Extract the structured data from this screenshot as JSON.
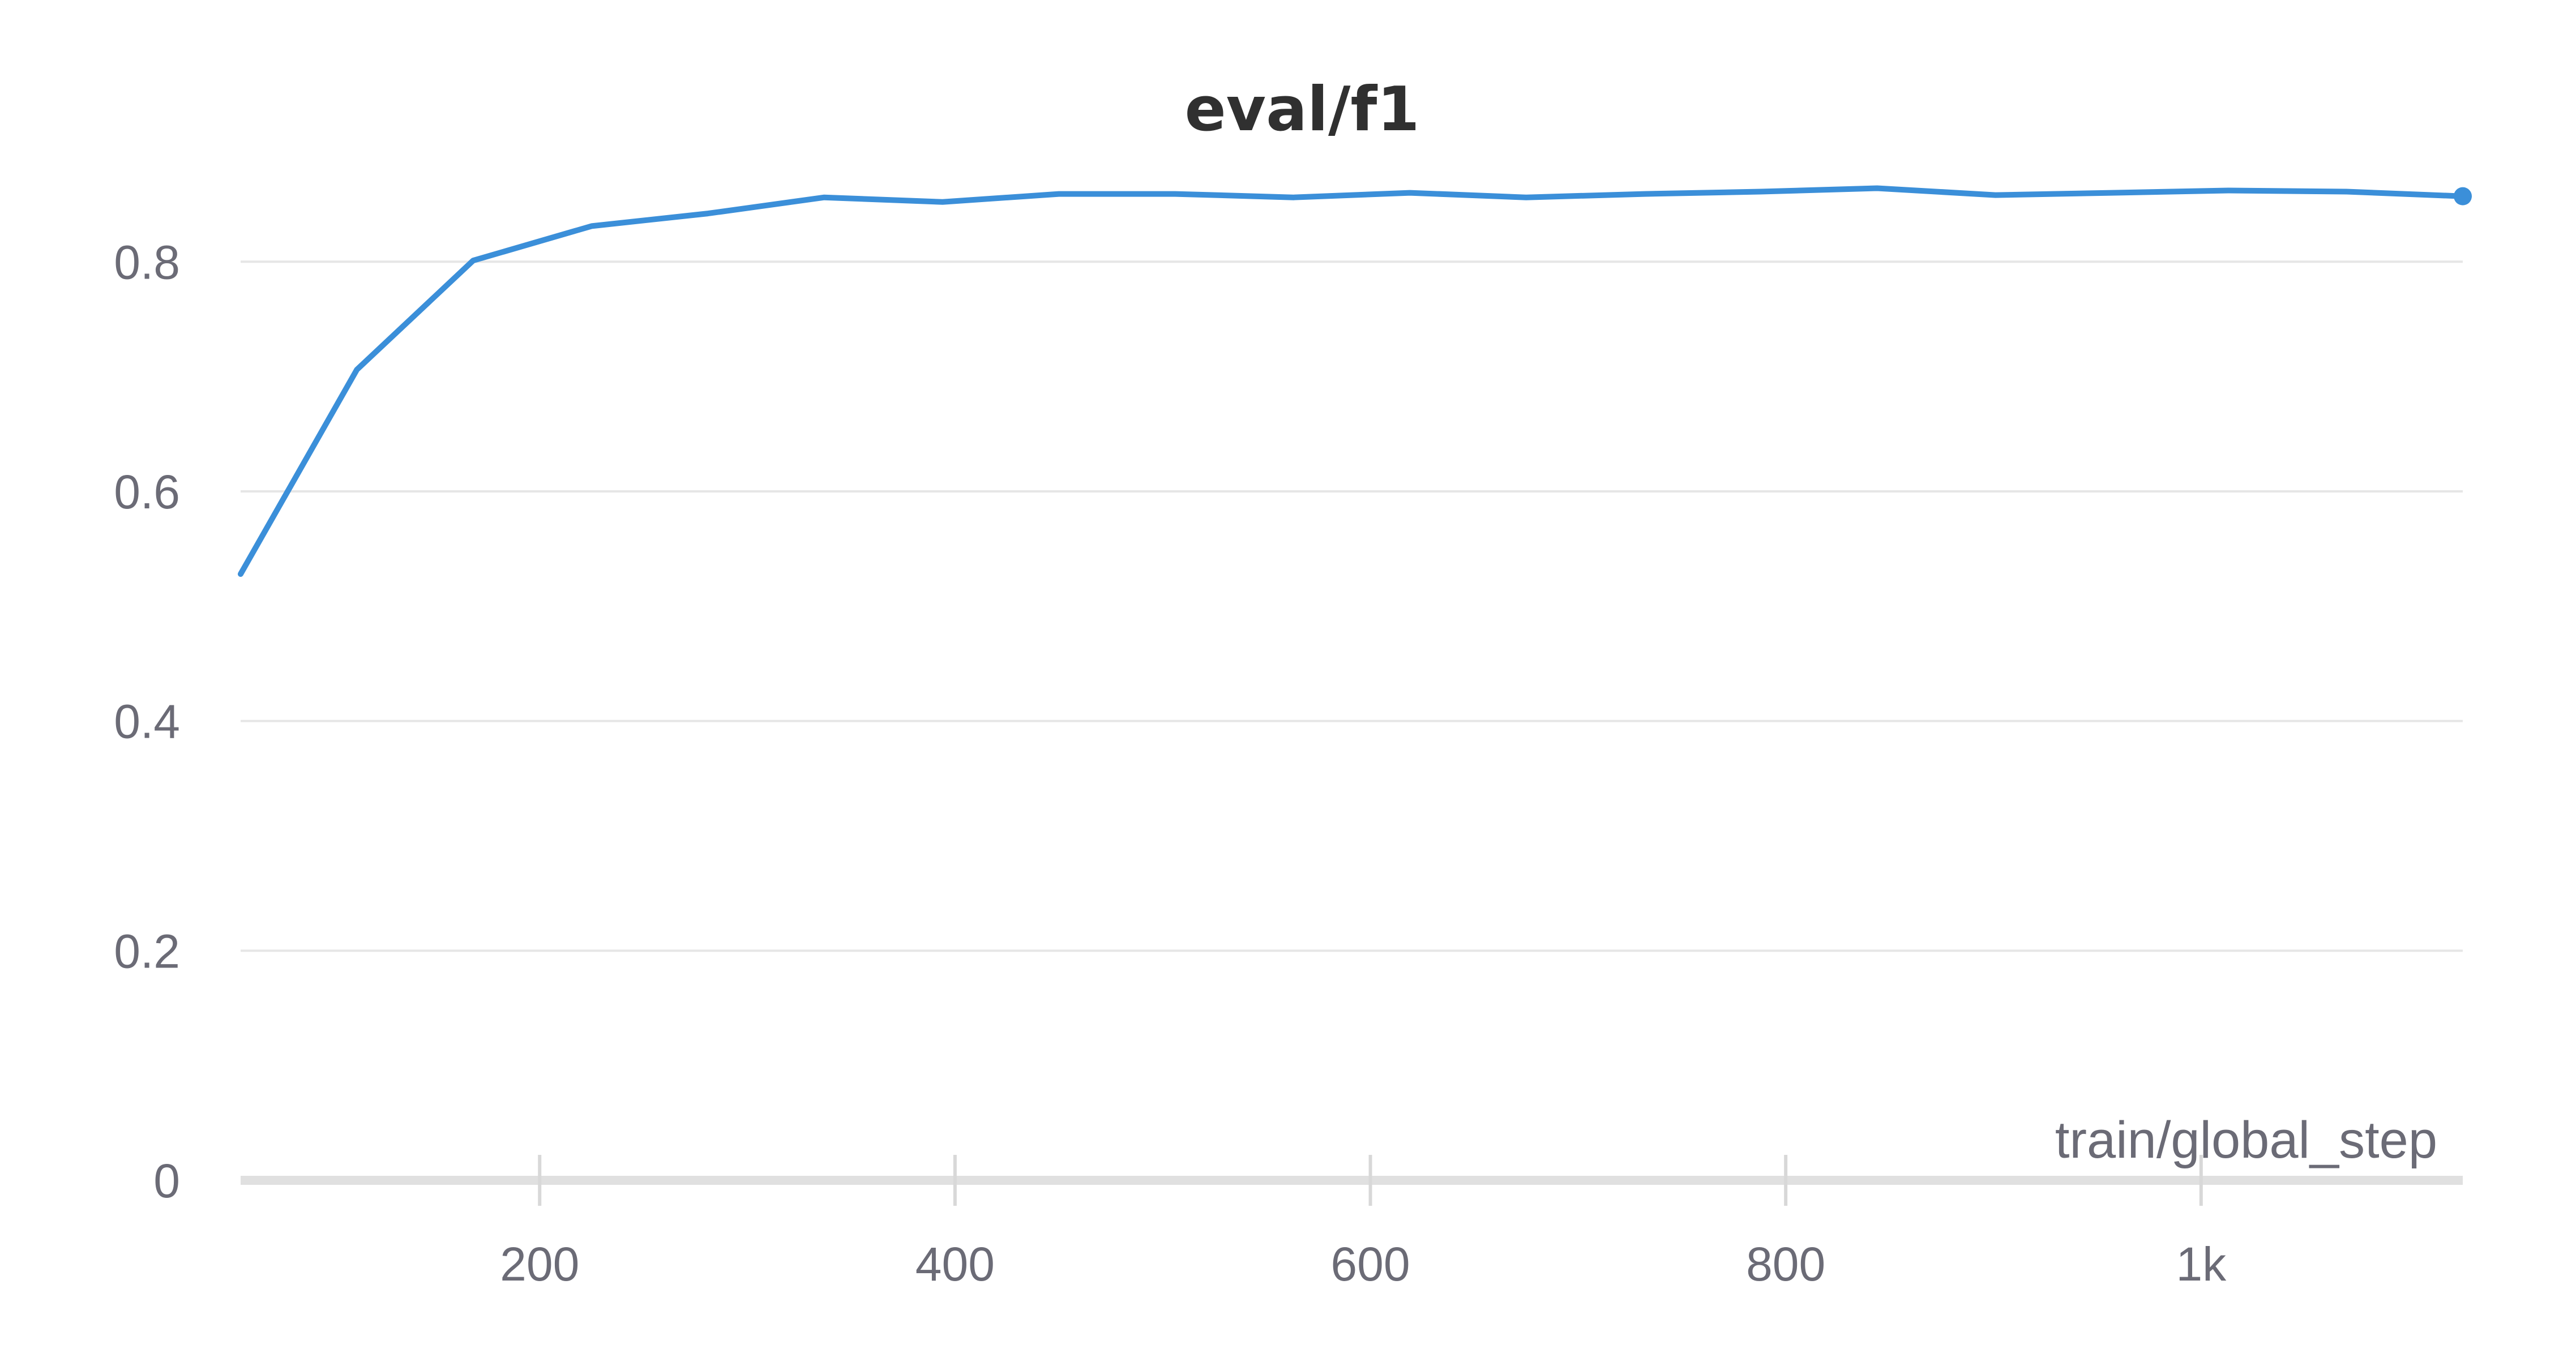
{
  "chart_data": {
    "type": "line",
    "title": "eval/f1",
    "xlabel": "train/global_step",
    "ylabel": "",
    "xlim": [
      56,
      1126
    ],
    "ylim": [
      0,
      0.88
    ],
    "x_ticks": [
      {
        "value": 200,
        "label": "200"
      },
      {
        "value": 400,
        "label": "400"
      },
      {
        "value": 600,
        "label": "600"
      },
      {
        "value": 800,
        "label": "800"
      },
      {
        "value": 1000,
        "label": "1k"
      }
    ],
    "y_ticks": [
      {
        "value": 0,
        "label": "0"
      },
      {
        "value": 0.2,
        "label": "0.2"
      },
      {
        "value": 0.4,
        "label": "0.4"
      },
      {
        "value": 0.6,
        "label": "0.6"
      },
      {
        "value": 0.8,
        "label": "0.8"
      }
    ],
    "grid": true,
    "series": [
      {
        "color": "#3b8fd9",
        "x": [
          56,
          112,
          168,
          225,
          281,
          337,
          394,
          450,
          506,
          563,
          619,
          675,
          732,
          788,
          844,
          901,
          957,
          1013,
          1070,
          1126
        ],
        "y": [
          0.528,
          0.706,
          0.801,
          0.831,
          0.842,
          0.856,
          0.852,
          0.859,
          0.859,
          0.856,
          0.86,
          0.856,
          0.859,
          0.861,
          0.864,
          0.858,
          0.86,
          0.862,
          0.861,
          0.857
        ]
      }
    ]
  }
}
